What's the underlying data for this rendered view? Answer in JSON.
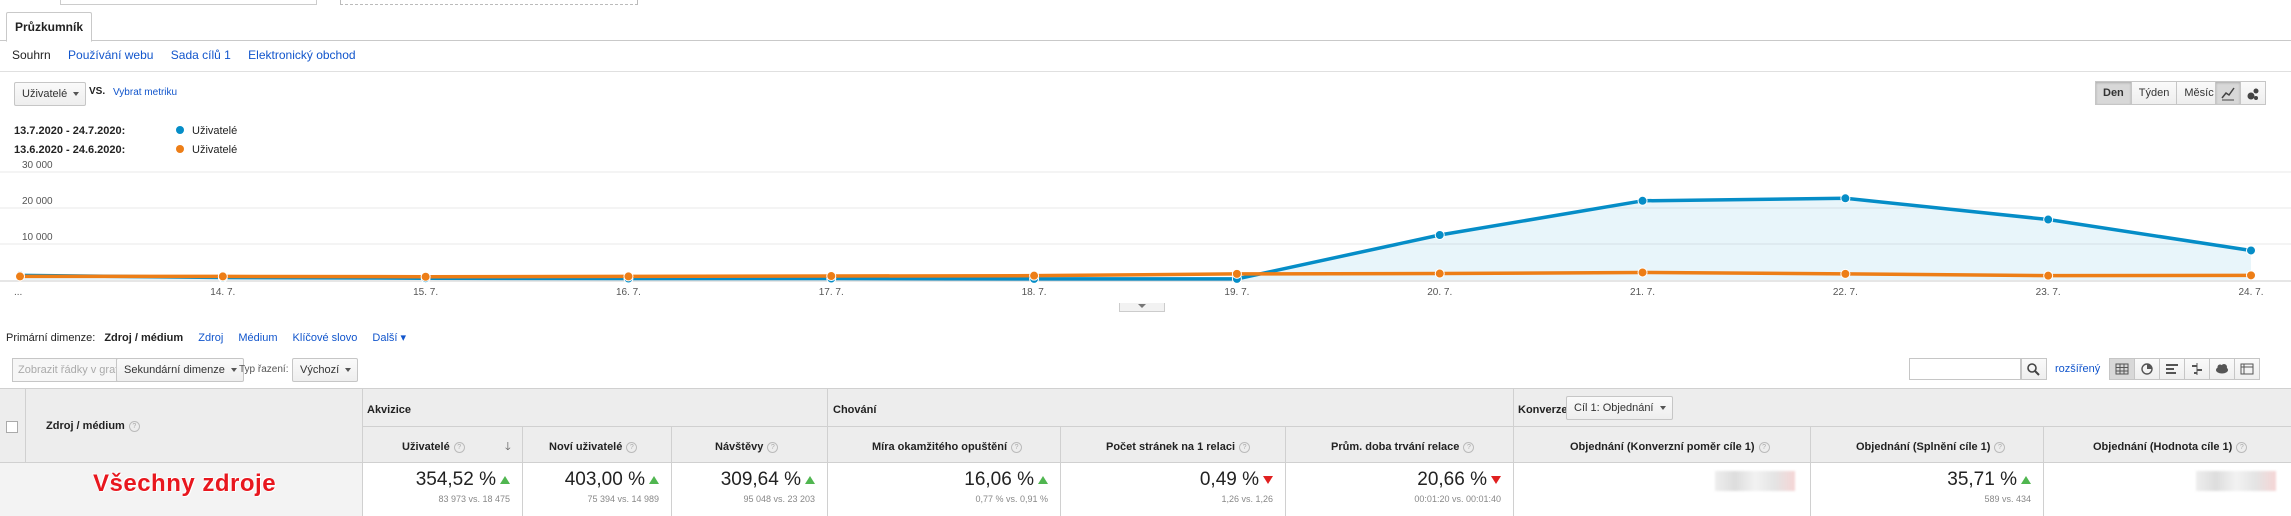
{
  "tabs": {
    "active": "Průzkumník"
  },
  "subnav": [
    "Souhrn",
    "Používání webu",
    "Sada cílů 1",
    "Elektronický obchod"
  ],
  "metric": {
    "selected": "Uživatelé",
    "vs": "VS.",
    "choose": "Vybrat metriku"
  },
  "granularity": [
    "Den",
    "Týden",
    "Měsíc"
  ],
  "legend": [
    {
      "range": "13.7.2020 - 24.7.2020:",
      "metric": "Uživatelé",
      "color": "#058dc7"
    },
    {
      "range": "13.6.2020 - 24.6.2020:",
      "metric": "Uživatelé",
      "color": "#ed7e17"
    }
  ],
  "chart_data": {
    "type": "line",
    "categories": [
      "...",
      "14. 7.",
      "15. 7.",
      "16. 7.",
      "17. 7.",
      "18. 7.",
      "19. 7.",
      "20. 7.",
      "21. 7.",
      "22. 7.",
      "23. 7.",
      "24. 7."
    ],
    "y_ticks": [
      "30 000",
      "20 000",
      "10 000"
    ],
    "ylim": [
      0,
      30000
    ],
    "series": [
      {
        "name": "13.7.2020 - 24.7.2020",
        "color": "#058dc7",
        "area": true,
        "values": [
          1300,
          700,
          500,
          400,
          400,
          300,
          300,
          12500,
          22000,
          22700,
          16800,
          8200
        ]
      },
      {
        "name": "13.6.2020 - 24.6.2020",
        "color": "#ed7e17",
        "area": false,
        "values": [
          1000,
          1000,
          900,
          1000,
          1100,
          1200,
          1700,
          1800,
          2100,
          1700,
          1200,
          1300
        ]
      }
    ],
    "grid": true
  },
  "dimensions": {
    "label": "Primární dimenze:",
    "active": "Zdroj / médium",
    "links": [
      "Zdroj",
      "Médium",
      "Klíčové slovo",
      "Další ▾"
    ]
  },
  "toolbar": {
    "plot_rows": "Zobrazit řádky v grafu",
    "secondary": "Sekundární dimenze",
    "sort_label": "Typ řazení:",
    "sort_value": "Výchozí",
    "advanced": "rozšířený"
  },
  "table": {
    "dim_header": "Zdroj / médium",
    "groups": {
      "acq": "Akvizice",
      "beh": "Chování",
      "conv": "Konverze",
      "conv_select": "Cíl 1: Objednání"
    },
    "columns": [
      "Uživatelé",
      "Noví uživatelé",
      "Návštěvy",
      "Míra okamžitého opuštění",
      "Počet stránek na 1 relaci",
      "Prům. doba trvání relace",
      "Objednání (Konverzní poměr cíle 1)",
      "Objednání (Splnění cíle 1)",
      "Objednání (Hodnota cíle 1)"
    ],
    "row": {
      "annotation": "Všechny zdroje",
      "cells": [
        {
          "big": "354,52 %",
          "small": "83 973 vs. 18 475",
          "dir": "up"
        },
        {
          "big": "403,00 %",
          "small": "75 394 vs. 14 989",
          "dir": "up"
        },
        {
          "big": "309,64 %",
          "small": "95 048 vs. 23 203",
          "dir": "up"
        },
        {
          "big": "16,06 %",
          "small": "0,77 % vs. 0,91 %",
          "dir": "up"
        },
        {
          "big": "0,49 %",
          "small": "1,26 vs. 1,26",
          "dir": "down"
        },
        {
          "big": "20,66 %",
          "small": "00:01:20 vs. 00:01:40",
          "dir": "down"
        },
        {
          "big": "",
          "small": "",
          "dir": "blur"
        },
        {
          "big": "35,71 %",
          "small": "589 vs. 434",
          "dir": "up"
        },
        {
          "big": "",
          "small": "",
          "dir": "blur"
        }
      ]
    }
  }
}
